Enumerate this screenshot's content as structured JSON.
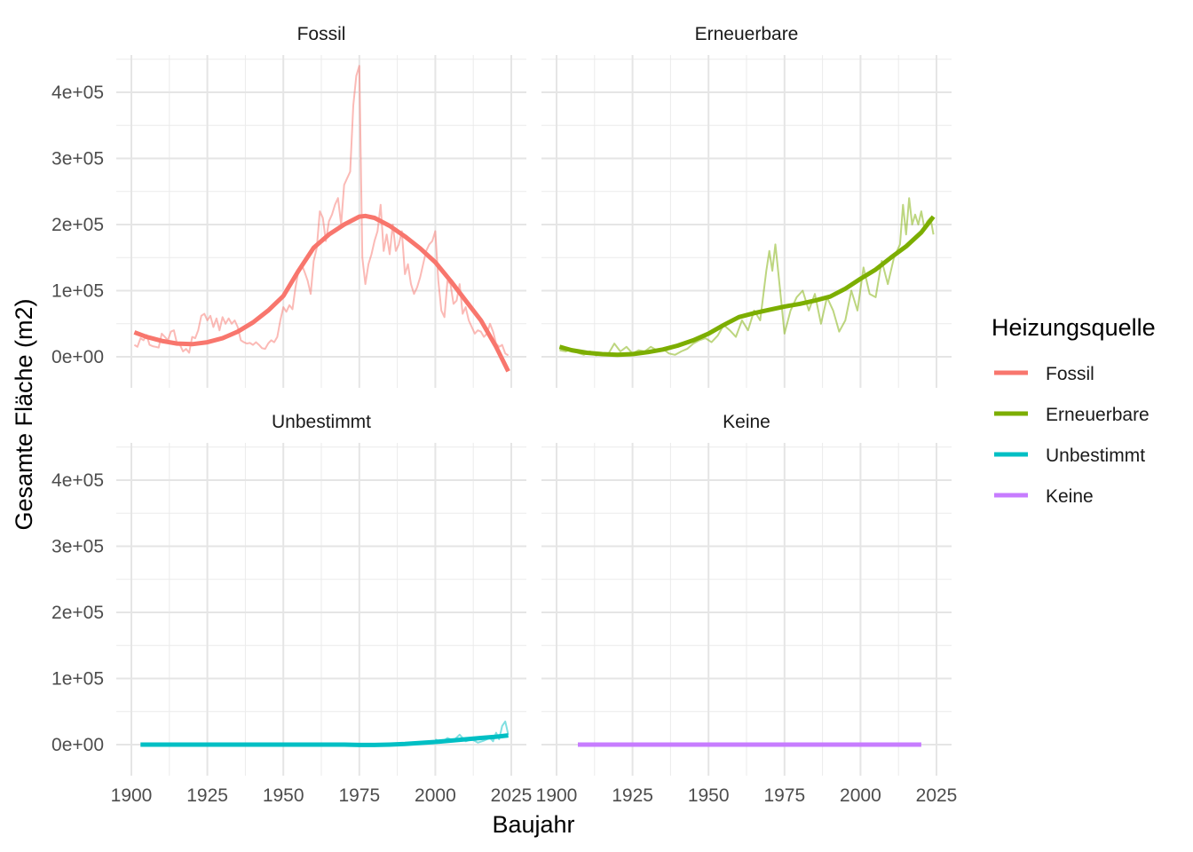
{
  "chart_data": {
    "type": "line",
    "xlabel": "Baujahr",
    "ylabel": "Gesamte Fläche (m2)",
    "xlim": [
      1900,
      2025
    ],
    "ylim": [
      -50000,
      450000
    ],
    "x_ticks": [
      1900,
      1925,
      1950,
      1975,
      2000,
      2025
    ],
    "x_tick_labels": [
      "1900",
      "1925",
      "1950",
      "1975",
      "2000",
      "2025"
    ],
    "y_ticks": [
      0,
      100000,
      200000,
      300000,
      400000
    ],
    "y_tick_labels": [
      "0e+00",
      "1e+05",
      "2e+05",
      "3e+05",
      "4e+05"
    ],
    "grid": true,
    "legend": {
      "title": "Heizungsquelle",
      "position": "right",
      "entries": [
        {
          "label": "Fossil",
          "color": "#F8766D"
        },
        {
          "label": "Erneuerbare",
          "color": "#7CAE00"
        },
        {
          "label": "Unbestimmt",
          "color": "#00BFC4"
        },
        {
          "label": "Keine",
          "color": "#C77CFF"
        }
      ]
    },
    "facets": [
      {
        "title": "Fossil",
        "color": "#F8766D",
        "raw": {
          "x": [
            1901,
            1902,
            1903,
            1904,
            1905,
            1906,
            1907,
            1908,
            1909,
            1910,
            1911,
            1912,
            1913,
            1914,
            1915,
            1916,
            1917,
            1918,
            1919,
            1920,
            1921,
            1922,
            1923,
            1924,
            1925,
            1926,
            1927,
            1928,
            1929,
            1930,
            1931,
            1932,
            1933,
            1934,
            1935,
            1936,
            1937,
            1938,
            1939,
            1940,
            1941,
            1942,
            1943,
            1944,
            1945,
            1946,
            1947,
            1948,
            1949,
            1950,
            1951,
            1952,
            1953,
            1954,
            1955,
            1956,
            1957,
            1958,
            1959,
            1960,
            1961,
            1962,
            1963,
            1964,
            1965,
            1966,
            1967,
            1968,
            1969,
            1970,
            1971,
            1972,
            1973,
            1974,
            1975,
            1976,
            1977,
            1978,
            1979,
            1980,
            1981,
            1982,
            1983,
            1984,
            1985,
            1986,
            1987,
            1988,
            1989,
            1990,
            1991,
            1992,
            1993,
            1994,
            1995,
            1996,
            1997,
            1998,
            1999,
            2000,
            2001,
            2002,
            2003,
            2004,
            2005,
            2006,
            2007,
            2008,
            2009,
            2010,
            2011,
            2012,
            2013,
            2014,
            2015,
            2016,
            2017,
            2018,
            2019,
            2020,
            2021,
            2022,
            2023,
            2024
          ],
          "y": [
            18000,
            15000,
            28000,
            25000,
            33000,
            18000,
            16000,
            15000,
            14000,
            35000,
            30000,
            25000,
            38000,
            40000,
            20000,
            18000,
            8000,
            12000,
            6000,
            30000,
            28000,
            40000,
            62000,
            65000,
            55000,
            62000,
            45000,
            58000,
            40000,
            60000,
            50000,
            58000,
            50000,
            55000,
            45000,
            25000,
            22000,
            20000,
            21000,
            18000,
            22000,
            18000,
            13000,
            12000,
            20000,
            25000,
            22000,
            30000,
            55000,
            75000,
            68000,
            78000,
            72000,
            105000,
            130000,
            140000,
            128000,
            115000,
            95000,
            145000,
            165000,
            220000,
            210000,
            175000,
            205000,
            215000,
            230000,
            240000,
            200000,
            260000,
            270000,
            280000,
            380000,
            425000,
            440000,
            150000,
            110000,
            140000,
            155000,
            175000,
            190000,
            230000,
            160000,
            185000,
            155000,
            200000,
            160000,
            170000,
            190000,
            125000,
            140000,
            110000,
            95000,
            105000,
            120000,
            140000,
            160000,
            170000,
            175000,
            190000,
            115000,
            70000,
            60000,
            115000,
            110000,
            80000,
            85000,
            110000,
            65000,
            75000,
            55000,
            45000,
            35000,
            40000,
            38000,
            30000,
            35000,
            50000,
            38000,
            20000,
            15000,
            18000,
            5000,
            2000
          ]
        },
        "smooth": {
          "x": [
            1901,
            1905,
            1910,
            1915,
            1920,
            1925,
            1930,
            1935,
            1940,
            1945,
            1950,
            1955,
            1960,
            1965,
            1970,
            1975,
            1977,
            1980,
            1985,
            1990,
            1995,
            2000,
            2005,
            2010,
            2015,
            2020,
            2024
          ],
          "y": [
            37000,
            30000,
            24000,
            20000,
            19000,
            22000,
            28000,
            38000,
            52000,
            70000,
            92000,
            130000,
            165000,
            185000,
            200000,
            212000,
            213000,
            210000,
            198000,
            182000,
            164000,
            143000,
            115000,
            85000,
            55000,
            15000,
            -22000
          ]
        }
      },
      {
        "title": "Erneuerbare",
        "color": "#7CAE00",
        "raw": {
          "x": [
            1901,
            1903,
            1905,
            1907,
            1909,
            1911,
            1913,
            1915,
            1917,
            1919,
            1921,
            1923,
            1925,
            1927,
            1929,
            1931,
            1933,
            1935,
            1937,
            1939,
            1941,
            1943,
            1945,
            1947,
            1949,
            1951,
            1953,
            1955,
            1957,
            1959,
            1961,
            1963,
            1965,
            1967,
            1969,
            1970,
            1971,
            1972,
            1973,
            1975,
            1977,
            1979,
            1981,
            1983,
            1985,
            1987,
            1989,
            1991,
            1993,
            1995,
            1997,
            1999,
            2001,
            2003,
            2005,
            2007,
            2009,
            2011,
            2013,
            2014,
            2015,
            2016,
            2017,
            2018,
            2019,
            2020,
            2021,
            2022,
            2023,
            2024
          ],
          "y": [
            10000,
            8000,
            12000,
            6000,
            3000,
            8000,
            2000,
            5000,
            4000,
            20000,
            8000,
            15000,
            5000,
            10000,
            8000,
            15000,
            10000,
            12000,
            5000,
            3000,
            8000,
            12000,
            20000,
            25000,
            28000,
            22000,
            32000,
            48000,
            40000,
            30000,
            55000,
            40000,
            70000,
            55000,
            130000,
            160000,
            130000,
            170000,
            125000,
            35000,
            70000,
            90000,
            100000,
            70000,
            95000,
            50000,
            90000,
            70000,
            38000,
            55000,
            100000,
            70000,
            135000,
            95000,
            90000,
            145000,
            110000,
            150000,
            170000,
            230000,
            185000,
            240000,
            200000,
            215000,
            200000,
            220000,
            195000,
            205000,
            210000,
            185000
          ]
        },
        "smooth": {
          "x": [
            1901,
            1905,
            1910,
            1915,
            1920,
            1925,
            1930,
            1935,
            1940,
            1945,
            1950,
            1955,
            1960,
            1965,
            1970,
            1975,
            1980,
            1985,
            1990,
            1995,
            2000,
            2005,
            2010,
            2015,
            2020,
            2024
          ],
          "y": [
            15000,
            10000,
            6000,
            4000,
            3000,
            4000,
            7000,
            11000,
            17000,
            25000,
            35000,
            48000,
            60000,
            66000,
            71000,
            76000,
            80000,
            85000,
            91000,
            103000,
            118000,
            132000,
            150000,
            167000,
            188000,
            212000
          ]
        }
      },
      {
        "title": "Unbestimmt",
        "color": "#00BFC4",
        "raw": {
          "x": [
            2000,
            2002,
            2004,
            2006,
            2008,
            2010,
            2012,
            2014,
            2016,
            2018,
            2019,
            2020,
            2021,
            2022,
            2023,
            2024
          ],
          "y": [
            8000,
            3000,
            10000,
            6000,
            15000,
            5000,
            8000,
            3000,
            6000,
            10000,
            5000,
            18000,
            8000,
            28000,
            35000,
            15000
          ]
        },
        "smooth": {
          "x": [
            1903,
            1910,
            1920,
            1930,
            1940,
            1950,
            1960,
            1970,
            1975,
            1980,
            1985,
            1990,
            1995,
            2000,
            2005,
            2010,
            2015,
            2020,
            2024
          ],
          "y": [
            0,
            0,
            0,
            0,
            0,
            0,
            0,
            0,
            -500,
            -500,
            0,
            1000,
            2500,
            4000,
            6000,
            8000,
            10000,
            12000,
            14000
          ]
        }
      },
      {
        "title": "Keine",
        "color": "#C77CFF",
        "raw": {
          "x": [],
          "y": []
        },
        "smooth": {
          "x": [
            1907,
            1920,
            1940,
            1960,
            1980,
            2000,
            2020
          ],
          "y": [
            0,
            0,
            0,
            0,
            0,
            0,
            0
          ]
        }
      }
    ]
  }
}
